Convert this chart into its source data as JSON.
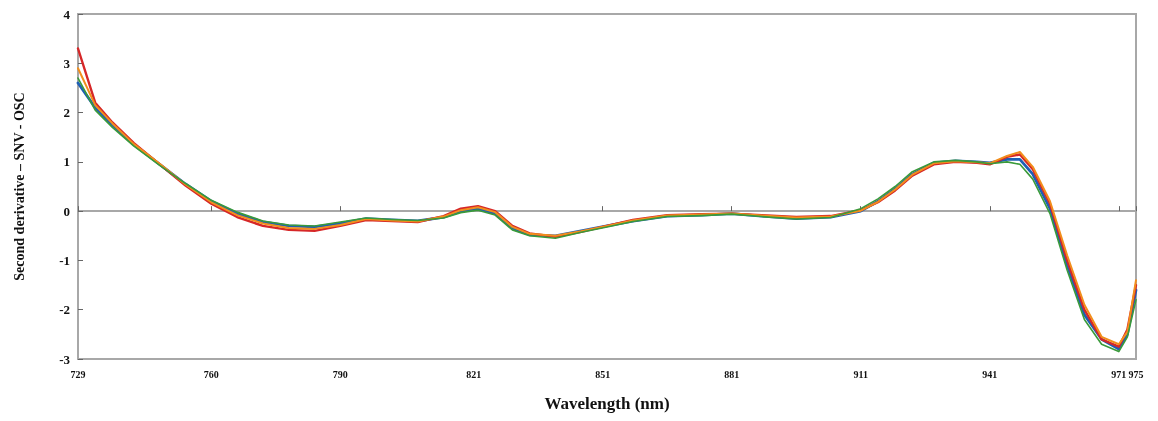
{
  "chart_data": {
    "type": "line",
    "xlabel": "Wavelength (nm)",
    "ylabel": "Second derivative – SNV - OSC",
    "x": [
      729,
      733,
      737,
      742,
      748,
      754,
      760,
      766,
      772,
      778,
      784,
      790,
      796,
      802,
      808,
      814,
      818,
      822,
      826,
      830,
      834,
      840,
      846,
      852,
      858,
      866,
      874,
      881,
      888,
      896,
      904,
      911,
      915,
      919,
      923,
      928,
      933,
      938,
      941,
      945,
      948,
      951,
      955,
      959,
      963,
      967,
      971,
      973,
      975
    ],
    "series": [
      {
        "color": "#1f5fb4",
        "values": [
          2.6,
          2.1,
          1.75,
          1.35,
          0.95,
          0.55,
          0.2,
          -0.05,
          -0.22,
          -0.3,
          -0.32,
          -0.25,
          -0.15,
          -0.18,
          -0.2,
          -0.12,
          0.0,
          0.05,
          -0.05,
          -0.35,
          -0.48,
          -0.5,
          -0.4,
          -0.3,
          -0.2,
          -0.1,
          -0.08,
          -0.05,
          -0.1,
          -0.15,
          -0.12,
          0.0,
          0.2,
          0.45,
          0.75,
          0.98,
          1.02,
          1.0,
          0.98,
          1.05,
          1.05,
          0.75,
          0.05,
          -1.1,
          -2.1,
          -2.6,
          -2.8,
          -2.5,
          -1.6
        ]
      },
      {
        "color": "#d62728",
        "values": [
          3.3,
          2.2,
          1.8,
          1.38,
          0.95,
          0.52,
          0.15,
          -0.12,
          -0.3,
          -0.38,
          -0.4,
          -0.3,
          -0.18,
          -0.2,
          -0.22,
          -0.1,
          0.05,
          0.1,
          0.0,
          -0.3,
          -0.45,
          -0.52,
          -0.42,
          -0.3,
          -0.18,
          -0.08,
          -0.06,
          -0.05,
          -0.08,
          -0.12,
          -0.1,
          0.02,
          0.18,
          0.42,
          0.72,
          0.95,
          1.0,
          0.98,
          0.95,
          1.1,
          1.15,
          0.85,
          0.15,
          -1.0,
          -2.0,
          -2.6,
          -2.75,
          -2.4,
          -1.5
        ]
      },
      {
        "color": "#f28e1c",
        "values": [
          2.9,
          2.15,
          1.78,
          1.36,
          0.96,
          0.54,
          0.18,
          -0.08,
          -0.25,
          -0.34,
          -0.36,
          -0.28,
          -0.16,
          -0.19,
          -0.21,
          -0.11,
          0.02,
          0.08,
          -0.02,
          -0.32,
          -0.46,
          -0.5,
          -0.41,
          -0.3,
          -0.19,
          -0.09,
          -0.07,
          -0.05,
          -0.09,
          -0.13,
          -0.11,
          0.01,
          0.19,
          0.44,
          0.74,
          0.97,
          1.01,
          0.99,
          0.97,
          1.12,
          1.2,
          0.9,
          0.2,
          -0.9,
          -1.9,
          -2.55,
          -2.7,
          -2.45,
          -1.4
        ]
      },
      {
        "color": "#3a9a3a",
        "values": [
          2.7,
          2.05,
          1.7,
          1.32,
          0.93,
          0.56,
          0.22,
          -0.02,
          -0.2,
          -0.28,
          -0.3,
          -0.22,
          -0.14,
          -0.17,
          -0.19,
          -0.14,
          -0.03,
          0.02,
          -0.08,
          -0.38,
          -0.5,
          -0.55,
          -0.43,
          -0.32,
          -0.21,
          -0.11,
          -0.09,
          -0.06,
          -0.11,
          -0.16,
          -0.13,
          0.05,
          0.25,
          0.5,
          0.8,
          1.0,
          1.03,
          1.0,
          0.96,
          1.0,
          0.95,
          0.65,
          -0.05,
          -1.2,
          -2.2,
          -2.7,
          -2.85,
          -2.55,
          -1.8
        ]
      }
    ],
    "xlim": [
      729,
      975
    ],
    "xticks": [
      729,
      760,
      790,
      821,
      851,
      881,
      911,
      941,
      971,
      975
    ],
    "ylim": [
      -3,
      4
    ],
    "yticks": [
      -3,
      -2,
      -1,
      0,
      1,
      2,
      3,
      4
    ],
    "marker": "none",
    "line_style": "solid"
  }
}
